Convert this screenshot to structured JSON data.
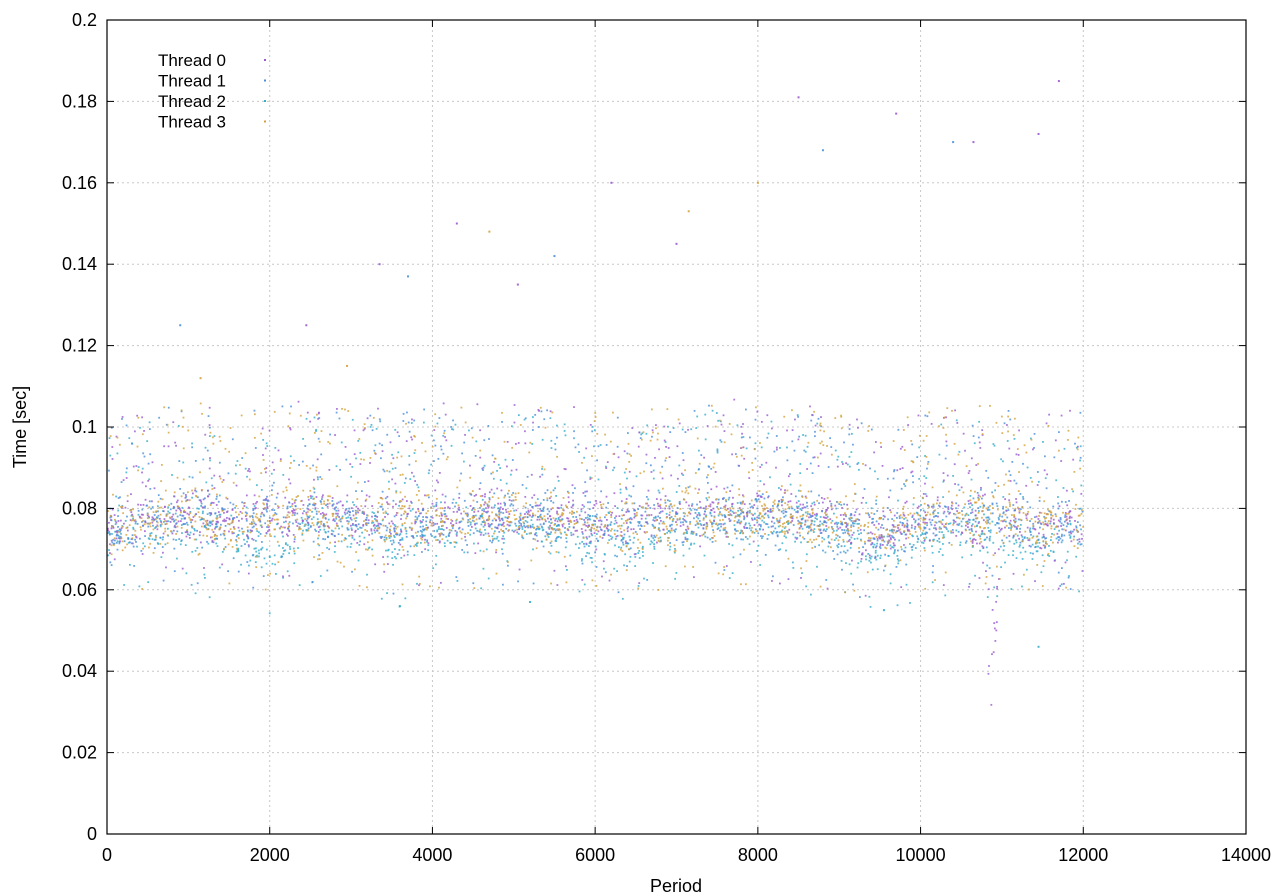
{
  "chart_data": {
    "type": "scatter",
    "title": "",
    "xlabel": "Period",
    "ylabel": "Time [sec]",
    "xlim": [
      0,
      14000
    ],
    "ylim": [
      0,
      0.2
    ],
    "x_ticks": [
      0,
      2000,
      4000,
      6000,
      8000,
      10000,
      12000,
      14000
    ],
    "x_tick_labels": [
      "0",
      "2000",
      "4000",
      "6000",
      "8000",
      "10000",
      "12000",
      "14000"
    ],
    "y_ticks": [
      0,
      0.02,
      0.04,
      0.06,
      0.08,
      0.1,
      0.12,
      0.14,
      0.16,
      0.18,
      0.2
    ],
    "y_tick_labels": [
      "0",
      "0.02",
      "0.04",
      "0.06",
      "0.08",
      "0.1",
      "0.12",
      "0.14",
      "0.16",
      "0.18",
      "0.2"
    ],
    "grid": true,
    "legend_position": "top-left",
    "series": [
      {
        "name": "Thread 0",
        "color": "#9b59d0",
        "sample_x": [
          0,
          500,
          1000,
          1500,
          2000,
          2500,
          3000,
          3500,
          4000,
          4500,
          5000,
          5500,
          6000,
          6500,
          7000,
          7500,
          8000,
          8500,
          9000,
          9500,
          10000,
          10500,
          10800,
          10850,
          11000,
          11500,
          12000
        ],
        "sample_y": [
          0.075,
          0.077,
          0.079,
          0.077,
          0.078,
          0.079,
          0.078,
          0.077,
          0.078,
          0.078,
          0.079,
          0.078,
          0.077,
          0.077,
          0.078,
          0.079,
          0.079,
          0.078,
          0.077,
          0.074,
          0.077,
          0.079,
          0.07,
          0.032,
          0.078,
          0.076,
          0.077
        ],
        "outliers": [
          [
            2450,
            0.125
          ],
          [
            3350,
            0.14
          ],
          [
            4300,
            0.15
          ],
          [
            5050,
            0.135
          ],
          [
            6200,
            0.16
          ],
          [
            7000,
            0.145
          ],
          [
            8500,
            0.181
          ],
          [
            9700,
            0.177
          ],
          [
            10650,
            0.17
          ],
          [
            11450,
            0.172
          ],
          [
            11700,
            0.185
          ]
        ]
      },
      {
        "name": "Thread 1",
        "color": "#4a8fd8",
        "sample_x": [
          0,
          500,
          1000,
          1500,
          2000,
          2500,
          3000,
          3500,
          4000,
          4500,
          5000,
          5500,
          6000,
          6500,
          7000,
          7500,
          8000,
          8500,
          9000,
          9500,
          10000,
          10500,
          11000,
          11500,
          12000
        ],
        "sample_y": [
          0.074,
          0.076,
          0.078,
          0.076,
          0.077,
          0.078,
          0.077,
          0.076,
          0.077,
          0.077,
          0.078,
          0.077,
          0.076,
          0.076,
          0.077,
          0.078,
          0.078,
          0.077,
          0.076,
          0.073,
          0.076,
          0.078,
          0.077,
          0.075,
          0.076
        ],
        "outliers": [
          [
            900,
            0.125
          ],
          [
            3700,
            0.137
          ],
          [
            5500,
            0.142
          ],
          [
            8800,
            0.168
          ],
          [
            10400,
            0.17
          ]
        ]
      },
      {
        "name": "Thread 2",
        "color": "#35aecb",
        "sample_x": [
          0,
          500,
          1000,
          1500,
          2000,
          2500,
          3000,
          3500,
          4000,
          4500,
          5000,
          5500,
          6000,
          6500,
          7000,
          7500,
          8000,
          8500,
          9000,
          9500,
          10000,
          10500,
          11000,
          11500,
          12000
        ],
        "sample_y": [
          0.072,
          0.074,
          0.077,
          0.072,
          0.069,
          0.076,
          0.075,
          0.072,
          0.075,
          0.075,
          0.076,
          0.074,
          0.072,
          0.072,
          0.075,
          0.077,
          0.077,
          0.076,
          0.074,
          0.069,
          0.074,
          0.076,
          0.074,
          0.07,
          0.074
        ],
        "outliers": [
          [
            3600,
            0.056
          ],
          [
            5200,
            0.057
          ],
          [
            9550,
            0.055
          ],
          [
            11450,
            0.046
          ]
        ]
      },
      {
        "name": "Thread 3",
        "color": "#d4a23c",
        "sample_x": [
          0,
          500,
          1000,
          1500,
          2000,
          2500,
          3000,
          3500,
          4000,
          4500,
          5000,
          5500,
          6000,
          6500,
          7000,
          7500,
          8000,
          8500,
          9000,
          9500,
          10000,
          10500,
          11000,
          11500,
          12000
        ],
        "sample_y": [
          0.073,
          0.076,
          0.079,
          0.076,
          0.077,
          0.078,
          0.077,
          0.076,
          0.077,
          0.077,
          0.078,
          0.077,
          0.076,
          0.076,
          0.077,
          0.078,
          0.078,
          0.077,
          0.076,
          0.074,
          0.077,
          0.078,
          0.077,
          0.076,
          0.077
        ],
        "outliers": [
          [
            1150,
            0.112
          ],
          [
            2950,
            0.115
          ],
          [
            4700,
            0.148
          ],
          [
            7150,
            0.153
          ],
          [
            8000,
            0.16
          ]
        ]
      }
    ]
  }
}
